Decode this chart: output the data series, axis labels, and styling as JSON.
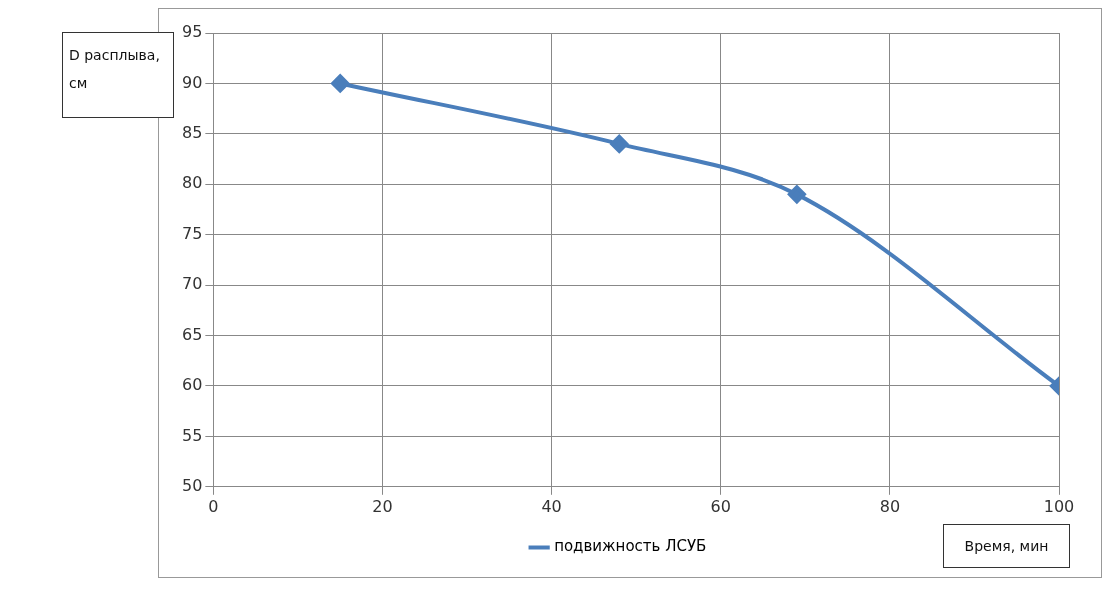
{
  "chart_data": {
    "type": "line",
    "xlabel": "Время, мин",
    "ylabel": "D расплыва, см",
    "x": [
      15,
      48,
      69,
      100
    ],
    "series": [
      {
        "name": "подвижность ЛСУБ",
        "color": "#4a7ebb",
        "values": [
          90,
          84,
          79,
          60
        ]
      }
    ],
    "xlim": [
      0,
      100
    ],
    "xticks": [
      0,
      20,
      40,
      60,
      80,
      100
    ],
    "ylim": [
      50,
      95
    ],
    "yticks": [
      50,
      55,
      60,
      65,
      70,
      75,
      80,
      85,
      90,
      95
    ],
    "grid": true,
    "legend": "bottom",
    "marker": "diamond",
    "line_style": "solid"
  }
}
